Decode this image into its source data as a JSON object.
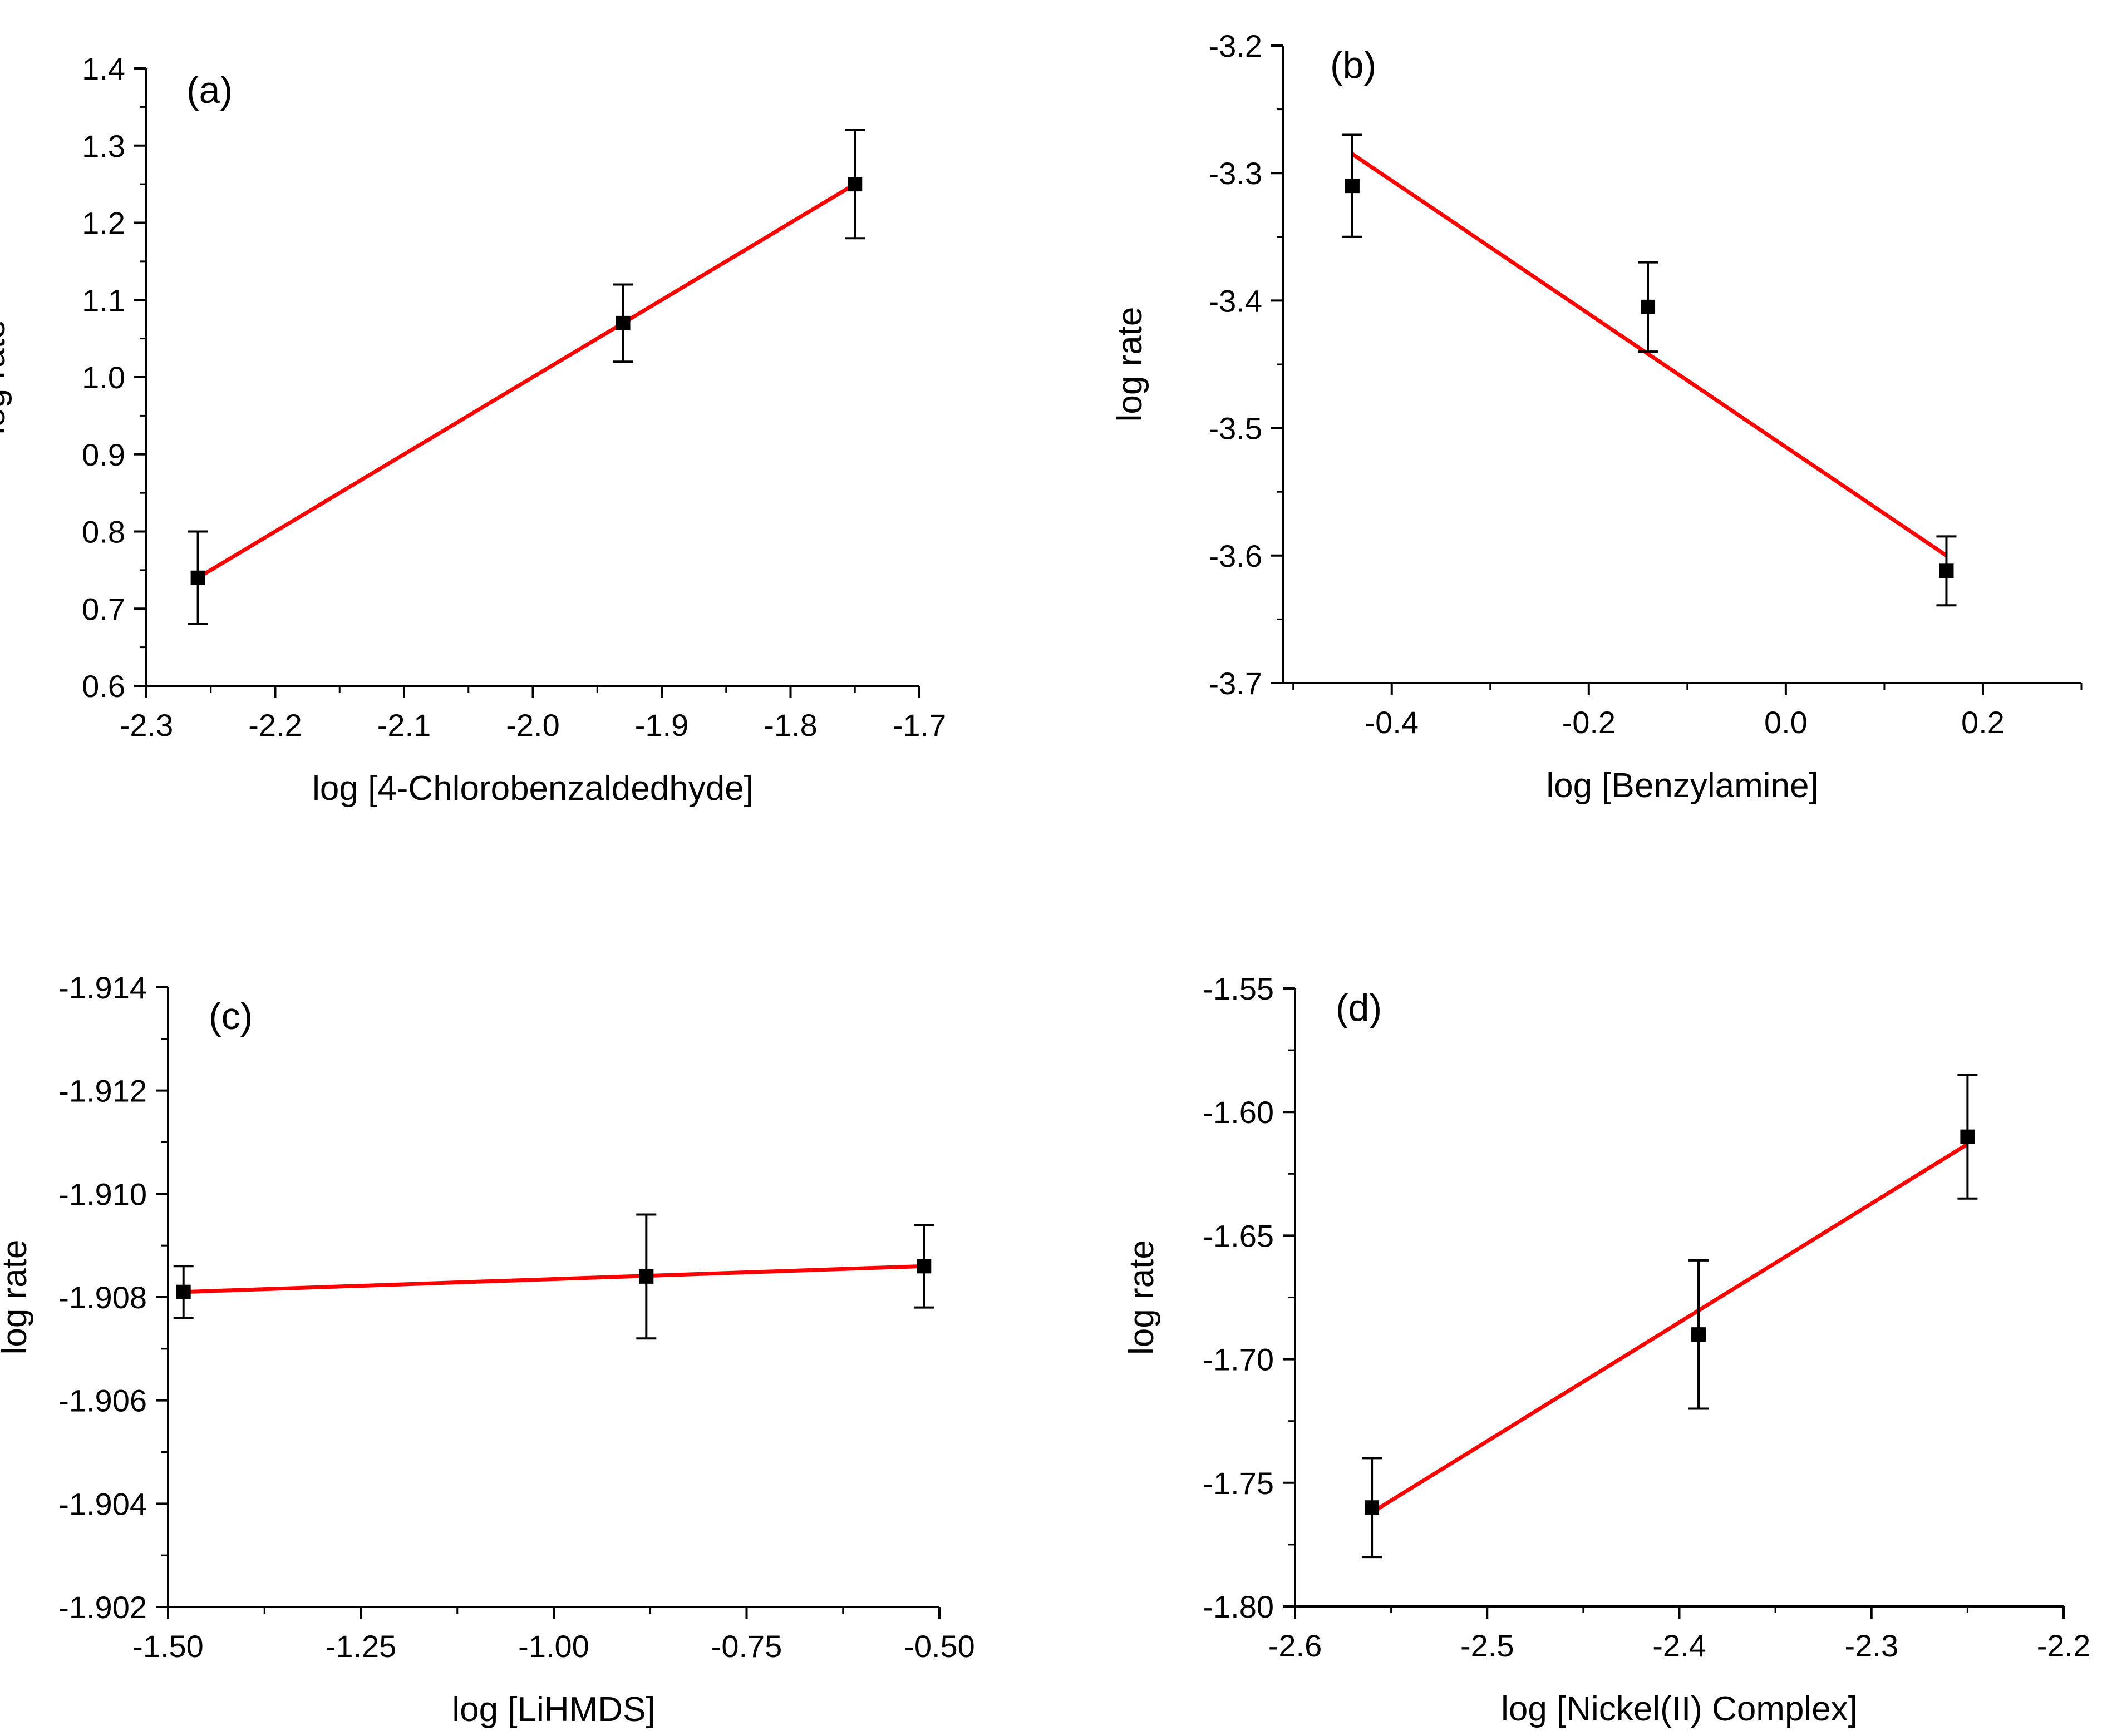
{
  "colors": {
    "axis": "#000000",
    "fit_line": "#ff0000",
    "marker": "#000000",
    "background": "#ffffff"
  },
  "chart_data": [
    {
      "panel_label": "(a)",
      "type": "scatter",
      "xlabel": "log [4-Chlorobenzaldedhyde]",
      "ylabel": "log rate",
      "xlim": [
        -2.3,
        -1.7
      ],
      "ylim": [
        0.6,
        1.4
      ],
      "xticks": [
        -2.3,
        -2.2,
        -2.1,
        -2.0,
        -1.9,
        -1.8,
        -1.7
      ],
      "xtick_labels": [
        "-2.3",
        "-2.2",
        "-2.1",
        "-2.0",
        "-1.9",
        "-1.8",
        "-1.7"
      ],
      "yticks": [
        0.6,
        0.7,
        0.8,
        0.9,
        1.0,
        1.1,
        1.2,
        1.3,
        1.4
      ],
      "ytick_labels": [
        "0.6",
        "0.7",
        "0.8",
        "0.9",
        "1.0",
        "1.1",
        "1.2",
        "1.3",
        "1.4"
      ],
      "x_minor": true,
      "y_minor": true,
      "points": [
        {
          "x": -2.26,
          "y": 0.74,
          "err": 0.06
        },
        {
          "x": -1.93,
          "y": 1.07,
          "err": 0.05
        },
        {
          "x": -1.75,
          "y": 1.25,
          "err": 0.07
        }
      ],
      "fit": {
        "x": [
          -2.26,
          -1.75
        ],
        "y": [
          0.74,
          1.25
        ]
      }
    },
    {
      "panel_label": "(b)",
      "type": "scatter",
      "xlabel": "log [Benzylamine]",
      "ylabel": "log rate",
      "xlim": [
        -0.51,
        0.3
      ],
      "ylim": [
        -3.7,
        -3.2
      ],
      "xticks": [
        -0.4,
        -0.2,
        0.0,
        0.2
      ],
      "xtick_labels": [
        "-0.4",
        "-0.2",
        "0.0",
        "0.2"
      ],
      "yticks": [
        -3.7,
        -3.6,
        -3.5,
        -3.4,
        -3.3,
        -3.2
      ],
      "ytick_labels": [
        "-3.7",
        "-3.6",
        "-3.5",
        "-3.4",
        "-3.3",
        "-3.2"
      ],
      "x_minor": true,
      "y_minor": true,
      "points": [
        {
          "x": -0.44,
          "y": -3.31,
          "err": 0.04
        },
        {
          "x": -0.14,
          "y": -3.405,
          "err": 0.035
        },
        {
          "x": 0.163,
          "y": -3.612,
          "err": 0.027
        }
      ],
      "fit": {
        "x": [
          -0.44,
          0.163
        ],
        "y": [
          -3.285,
          -3.6
        ]
      }
    },
    {
      "panel_label": "(c)",
      "type": "scatter",
      "xlabel": "log [LiHMDS]",
      "ylabel": "log rate",
      "xlim": [
        -1.5,
        -0.5
      ],
      "ylim": [
        -1.902,
        -1.914
      ],
      "xticks": [
        -1.5,
        -1.25,
        -1.0,
        -0.75,
        -0.5
      ],
      "xtick_labels": [
        "-1.50",
        "-1.25",
        "-1.00",
        "-0.75",
        "-0.50"
      ],
      "yticks": [
        -1.902,
        -1.904,
        -1.906,
        -1.908,
        -1.91,
        -1.912,
        -1.914
      ],
      "ytick_labels": [
        "-1.902",
        "-1.904",
        "-1.906",
        "-1.908",
        "-1.910",
        "-1.912",
        "-1.914"
      ],
      "x_minor": true,
      "y_minor": true,
      "points": [
        {
          "x": -1.48,
          "y": -1.9081,
          "err": 0.0005
        },
        {
          "x": -0.88,
          "y": -1.9084,
          "err": 0.0012
        },
        {
          "x": -0.52,
          "y": -1.9086,
          "err": 0.0008
        }
      ],
      "fit": {
        "x": [
          -1.48,
          -0.52
        ],
        "y": [
          -1.9081,
          -1.9086
        ]
      }
    },
    {
      "panel_label": "(d)",
      "type": "scatter",
      "xlabel": "log [Nickel(II) Complex]",
      "ylabel": "log rate",
      "xlim": [
        -2.6,
        -2.2
      ],
      "ylim": [
        -1.8,
        -1.55
      ],
      "xticks": [
        -2.6,
        -2.5,
        -2.4,
        -2.3,
        -2.2
      ],
      "xtick_labels": [
        "-2.6",
        "-2.5",
        "-2.4",
        "-2.3",
        "-2.2"
      ],
      "yticks": [
        -1.8,
        -1.75,
        -1.7,
        -1.65,
        -1.6,
        -1.55
      ],
      "ytick_labels": [
        "-1.80",
        "-1.75",
        "-1.70",
        "-1.65",
        "-1.60",
        "-1.55"
      ],
      "x_minor": true,
      "y_minor": true,
      "points": [
        {
          "x": -2.56,
          "y": -1.76,
          "err": 0.02
        },
        {
          "x": -2.39,
          "y": -1.69,
          "err": 0.03
        },
        {
          "x": -2.25,
          "y": -1.61,
          "err": 0.025
        }
      ],
      "fit": {
        "x": [
          -2.56,
          -2.25
        ],
        "y": [
          -1.762,
          -1.613
        ]
      }
    }
  ]
}
